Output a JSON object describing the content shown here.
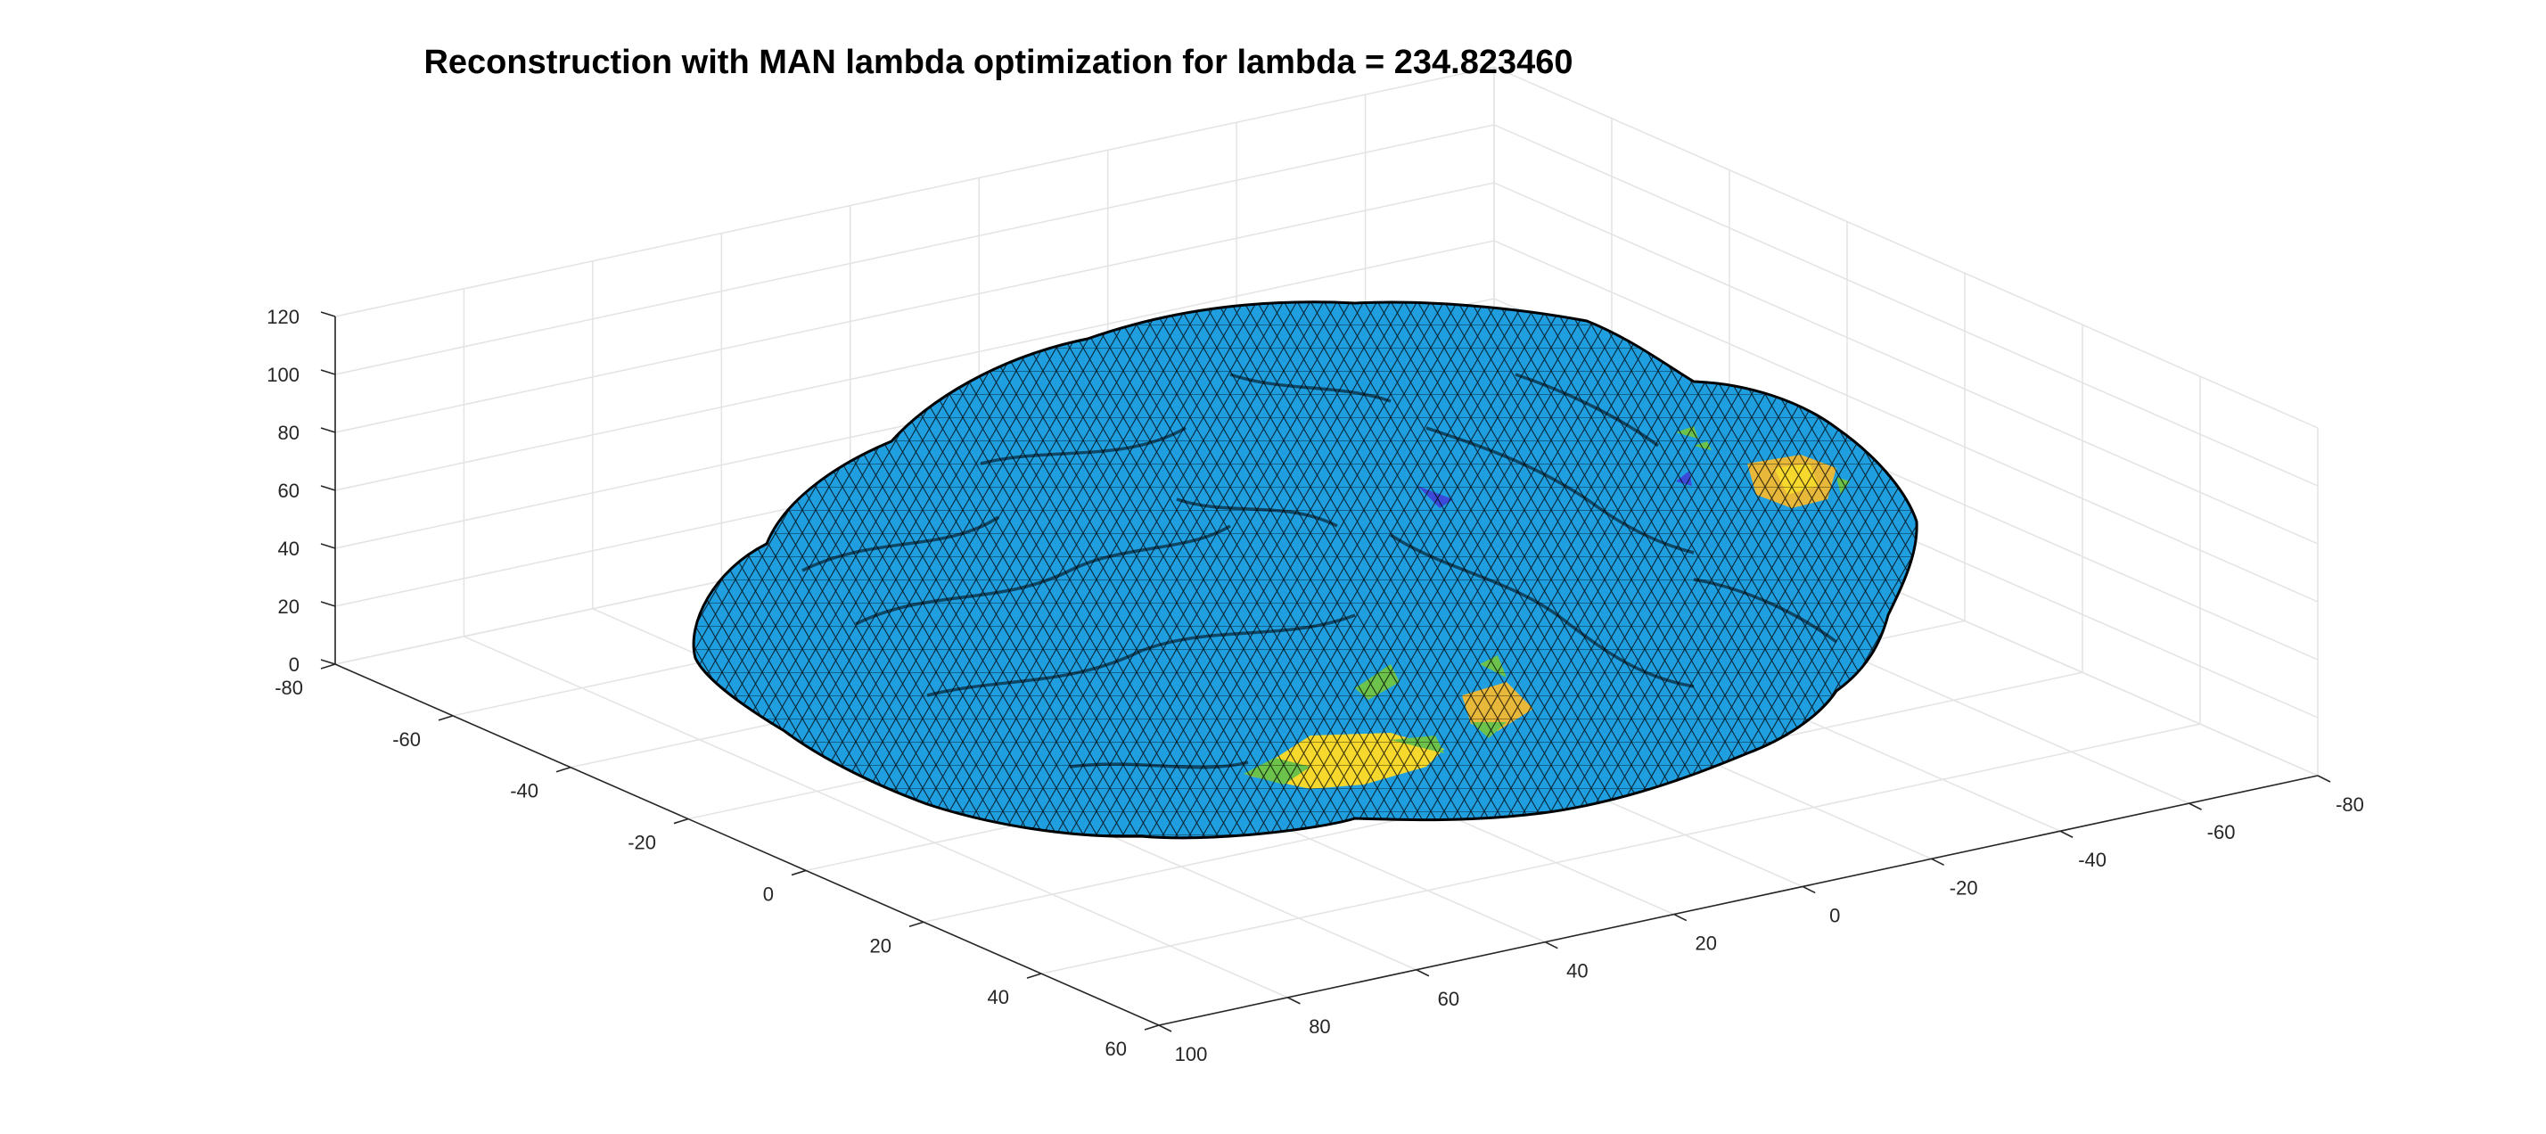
{
  "chart_data": {
    "type": "surface",
    "title": "Reconstruction with MAN lambda optimization for lambda = 234.823460",
    "xlabel": "",
    "ylabel": "",
    "zlabel": "",
    "x_ticks": [
      "100",
      "80",
      "60",
      "40",
      "20",
      "0",
      "-20",
      "-40",
      "-60",
      "-80"
    ],
    "y_ticks": [
      "60",
      "40",
      "20",
      "0",
      "-20",
      "-40",
      "-60",
      "-80"
    ],
    "z_ticks": [
      "0",
      "20",
      "40",
      "60",
      "80",
      "100",
      "120"
    ],
    "xlim": [
      -80,
      100
    ],
    "ylim": [
      -80,
      60
    ],
    "zlim": [
      0,
      120
    ],
    "grid": true,
    "surface_color": "#1f9ee0",
    "edge_color": "#000000",
    "colormap": "parula",
    "activation_colors": [
      "#f7d82c",
      "#e8b83a",
      "#6cc24a",
      "#3b4bd8"
    ]
  }
}
